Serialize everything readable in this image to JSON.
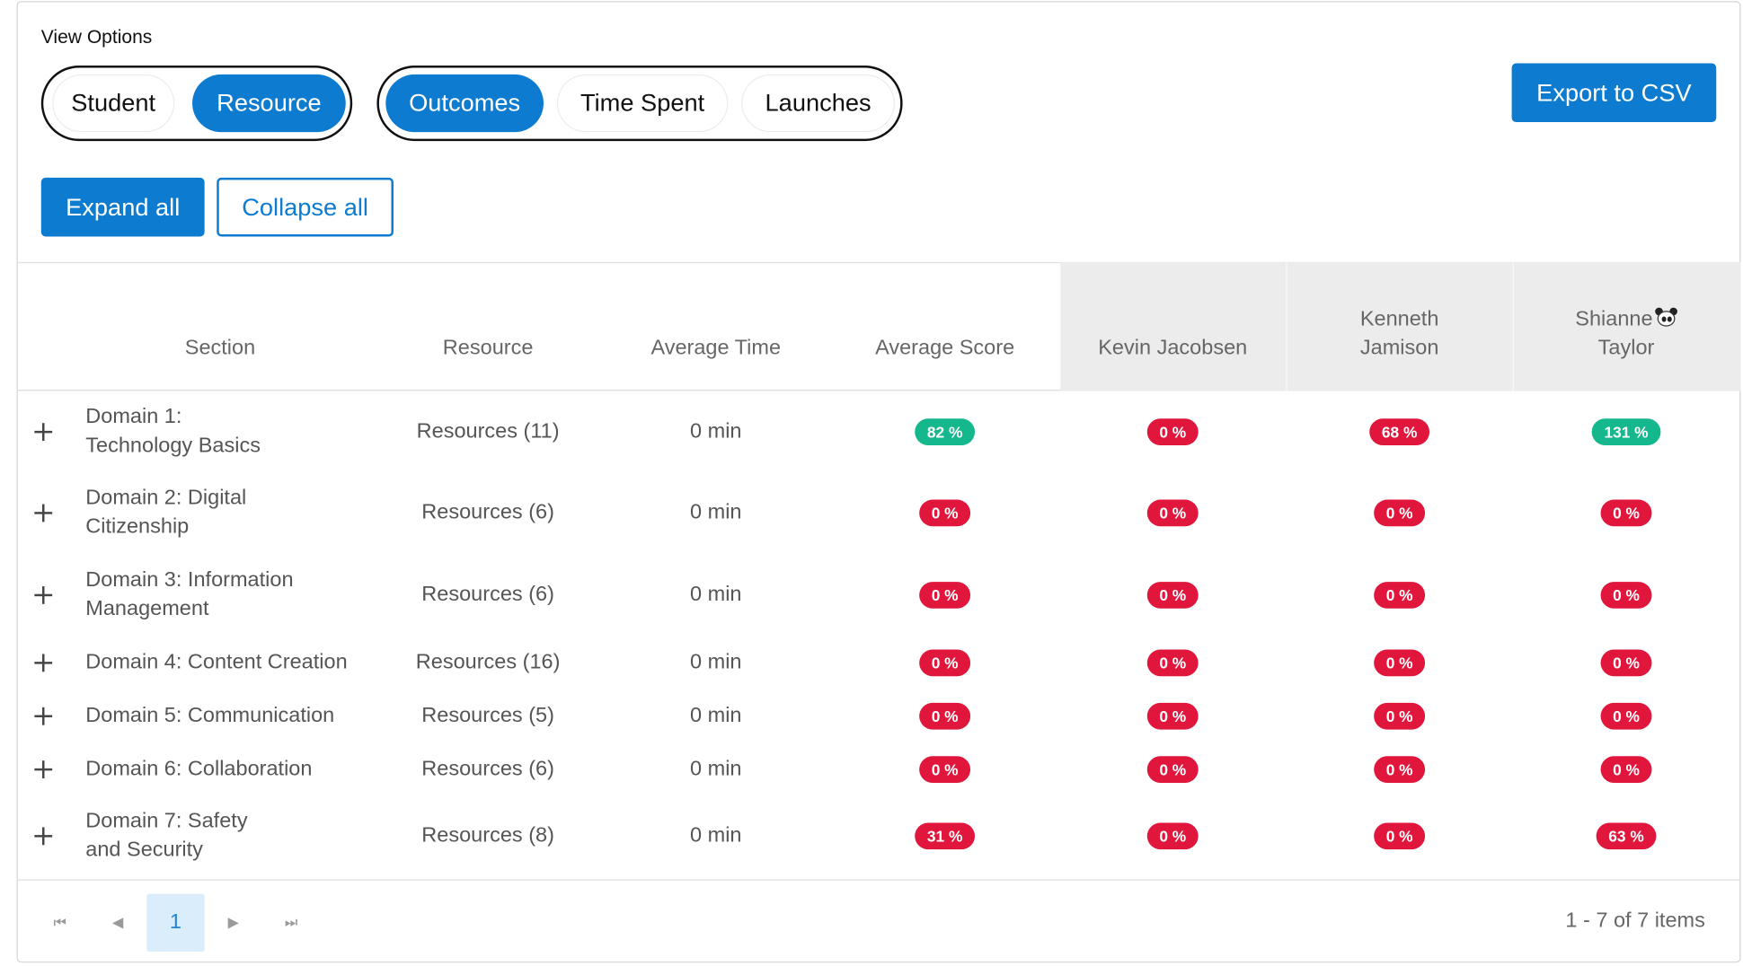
{
  "view_options": {
    "label": "View Options",
    "group1": [
      {
        "label": "Student",
        "active": false
      },
      {
        "label": "Resource",
        "active": true
      }
    ],
    "group2": [
      {
        "label": "Outcomes",
        "active": true
      },
      {
        "label": "Time Spent",
        "active": false
      },
      {
        "label": "Launches",
        "active": false
      }
    ]
  },
  "actions": {
    "export_label": "Export to CSV",
    "expand_label": "Expand all",
    "collapse_label": "Collapse all"
  },
  "table": {
    "columns": {
      "section": "Section",
      "resource": "Resource",
      "average_time": "Average Time",
      "average_score": "Average Score"
    },
    "students": [
      {
        "line1": "Kevin Jacobsen",
        "line2": ""
      },
      {
        "line1": "Kenneth",
        "line2": "Jamison"
      },
      {
        "line1": "Shianne",
        "line2": "Taylor",
        "icon": "panda-icon"
      }
    ],
    "rows": [
      {
        "section_l1": "Domain 1:",
        "section_l2": "Technology Basics",
        "resource": "Resources (11)",
        "time": "0 min",
        "avg": {
          "text": "82 %",
          "status": "green"
        },
        "scores": [
          {
            "text": "0 %",
            "status": "red"
          },
          {
            "text": "68 %",
            "status": "red"
          },
          {
            "text": "131 %",
            "status": "green"
          }
        ]
      },
      {
        "section_l1": "Domain 2: Digital",
        "section_l2": "Citizenship",
        "resource": "Resources (6)",
        "time": "0 min",
        "avg": {
          "text": "0 %",
          "status": "red"
        },
        "scores": [
          {
            "text": "0 %",
            "status": "red"
          },
          {
            "text": "0 %",
            "status": "red"
          },
          {
            "text": "0 %",
            "status": "red"
          }
        ]
      },
      {
        "section_l1": "Domain 3: Information",
        "section_l2": "Management",
        "resource": "Resources (6)",
        "time": "0 min",
        "avg": {
          "text": "0 %",
          "status": "red"
        },
        "scores": [
          {
            "text": "0 %",
            "status": "red"
          },
          {
            "text": "0 %",
            "status": "red"
          },
          {
            "text": "0 %",
            "status": "red"
          }
        ]
      },
      {
        "section_l1": "Domain 4: Content Creation",
        "section_l2": "",
        "resource": "Resources (16)",
        "time": "0 min",
        "avg": {
          "text": "0 %",
          "status": "red"
        },
        "scores": [
          {
            "text": "0 %",
            "status": "red"
          },
          {
            "text": "0 %",
            "status": "red"
          },
          {
            "text": "0 %",
            "status": "red"
          }
        ]
      },
      {
        "section_l1": "Domain 5: Communication",
        "section_l2": "",
        "resource": "Resources (5)",
        "time": "0 min",
        "avg": {
          "text": "0 %",
          "status": "red"
        },
        "scores": [
          {
            "text": "0 %",
            "status": "red"
          },
          {
            "text": "0 %",
            "status": "red"
          },
          {
            "text": "0 %",
            "status": "red"
          }
        ]
      },
      {
        "section_l1": "Domain 6: Collaboration",
        "section_l2": "",
        "resource": "Resources (6)",
        "time": "0 min",
        "avg": {
          "text": "0 %",
          "status": "red"
        },
        "scores": [
          {
            "text": "0 %",
            "status": "red"
          },
          {
            "text": "0 %",
            "status": "red"
          },
          {
            "text": "0 %",
            "status": "red"
          }
        ]
      },
      {
        "section_l1": "Domain 7: Safety",
        "section_l2": "and Security",
        "resource": "Resources (8)",
        "time": "0 min",
        "avg": {
          "text": "31 %",
          "status": "red"
        },
        "scores": [
          {
            "text": "0 %",
            "status": "red"
          },
          {
            "text": "0 %",
            "status": "red"
          },
          {
            "text": "63 %",
            "status": "red"
          }
        ]
      }
    ]
  },
  "pager": {
    "current_page": "1",
    "info": "1 - 7 of 7 items",
    "icons": [
      "first-page-icon",
      "prev-page-icon",
      "next-page-icon",
      "last-page-icon"
    ]
  },
  "colors": {
    "primary": "#0d7bcf",
    "success": "#15b78c",
    "danger": "#e0163c",
    "header_shade": "#ececec"
  }
}
